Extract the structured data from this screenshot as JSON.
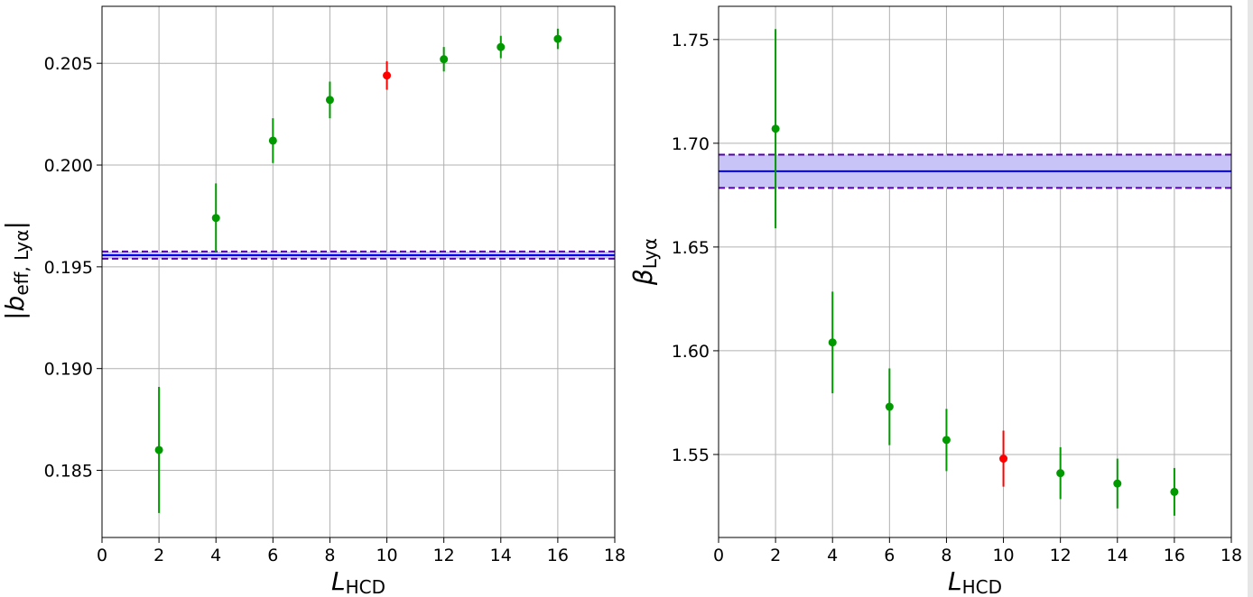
{
  "chart_data": [
    {
      "type": "scatter",
      "xlabel": "L",
      "xlabel_sub": "HCD",
      "ylabel": "|b",
      "ylabel_sub": "eff, Lyα",
      "ylabel_suffix": "|",
      "xlim": [
        0,
        18
      ],
      "ylim": [
        0.1817,
        0.2078
      ],
      "xticks": [
        0,
        2,
        4,
        6,
        8,
        10,
        12,
        14,
        16,
        18
      ],
      "yticks": [
        0.185,
        0.19,
        0.195,
        0.2,
        0.205
      ],
      "ytick_labels": [
        "0.185",
        "0.190",
        "0.195",
        "0.200",
        "0.205"
      ],
      "grid": true,
      "colors": {
        "points": "#009900",
        "highlight": "#ff0000",
        "band_line": "#0000ee",
        "band_dash": "#5500aa",
        "band_fill": "#c8c4f8"
      },
      "series": [
        {
          "x": [
            2,
            4,
            6,
            8,
            10,
            12,
            14,
            16
          ],
          "y": [
            0.186,
            0.1974,
            0.2012,
            0.2032,
            0.2044,
            0.2052,
            0.2058,
            0.2062
          ],
          "yerr": [
            0.0031,
            0.0017,
            0.0011,
            0.0009,
            0.0007,
            0.0006,
            0.00055,
            0.0005
          ],
          "highlight_index": 4
        }
      ],
      "band": {
        "center": 0.19557,
        "lower": 0.1954,
        "upper": 0.19575
      }
    },
    {
      "type": "scatter",
      "xlabel": "L",
      "xlabel_sub": "HCD",
      "ylabel": "β",
      "ylabel_sub": "Lyα",
      "ylabel_suffix": "",
      "xlim": [
        0,
        18
      ],
      "ylim": [
        1.51,
        1.766
      ],
      "xticks": [
        0,
        2,
        4,
        6,
        8,
        10,
        12,
        14,
        16,
        18
      ],
      "yticks": [
        1.55,
        1.6,
        1.65,
        1.7,
        1.75
      ],
      "ytick_labels": [
        "1.55",
        "1.60",
        "1.65",
        "1.70",
        "1.75"
      ],
      "grid": true,
      "colors": {
        "points": "#009900",
        "highlight": "#ff0000",
        "band_line": "#0000ee",
        "band_dash": "#5500aa",
        "band_fill": "#c8c4f8"
      },
      "series": [
        {
          "x": [
            2,
            4,
            6,
            8,
            10,
            12,
            14,
            16
          ],
          "y": [
            1.707,
            1.604,
            1.573,
            1.557,
            1.548,
            1.541,
            1.536,
            1.532
          ],
          "yerr": [
            0.048,
            0.0245,
            0.0185,
            0.015,
            0.0135,
            0.0125,
            0.012,
            0.0115
          ],
          "highlight_index": 4
        }
      ],
      "band": {
        "center": 1.6865,
        "lower": 1.6785,
        "upper": 1.6945
      }
    }
  ]
}
